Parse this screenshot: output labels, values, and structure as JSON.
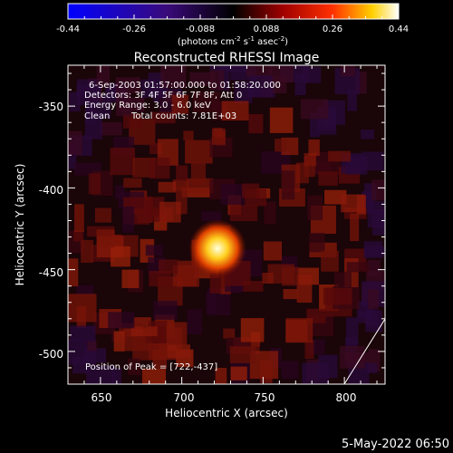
{
  "chart_data": {
    "type": "heatmap",
    "title": "Reconstructed RHESSI Image",
    "xlabel": "Heliocentric X (arcsec)",
    "ylabel": "Heliocentric Y (arcsec)",
    "xlim": [
      630,
      825
    ],
    "ylim": [
      -520,
      -325
    ],
    "x_ticks": [
      650,
      700,
      750,
      800
    ],
    "y_ticks": [
      -350,
      -400,
      -450,
      -500
    ],
    "colorbar": {
      "ticks": [
        "-0.44",
        "-0.26",
        "-0.088",
        "0.088",
        "0.26",
        "0.44"
      ],
      "unit_main": "(photons cm",
      "unit_exp1": "-2",
      "unit_mid": " s",
      "unit_exp2": "-1",
      "unit_mid2": " asec",
      "unit_exp3": "-2",
      "unit_end": ")",
      "min": -0.44,
      "max": 0.44
    },
    "annotations": {
      "line1": "6-Sep-2003 01:57:00.000 to 01:58:20.000",
      "line2": "Detectors: 3F 4F 5F 6F 7F 8F, Att 0",
      "line3": "Energy Range: 3.0 - 6.0 keV",
      "line4_a": "Clean",
      "line4_b": "Total counts: 7.81E+03",
      "peak": "Position of Peak = [722,-437]"
    },
    "peak": {
      "x": 722,
      "y": -437
    },
    "footer_date": "5-May-2022 06:50",
    "background_color": "#000000"
  }
}
